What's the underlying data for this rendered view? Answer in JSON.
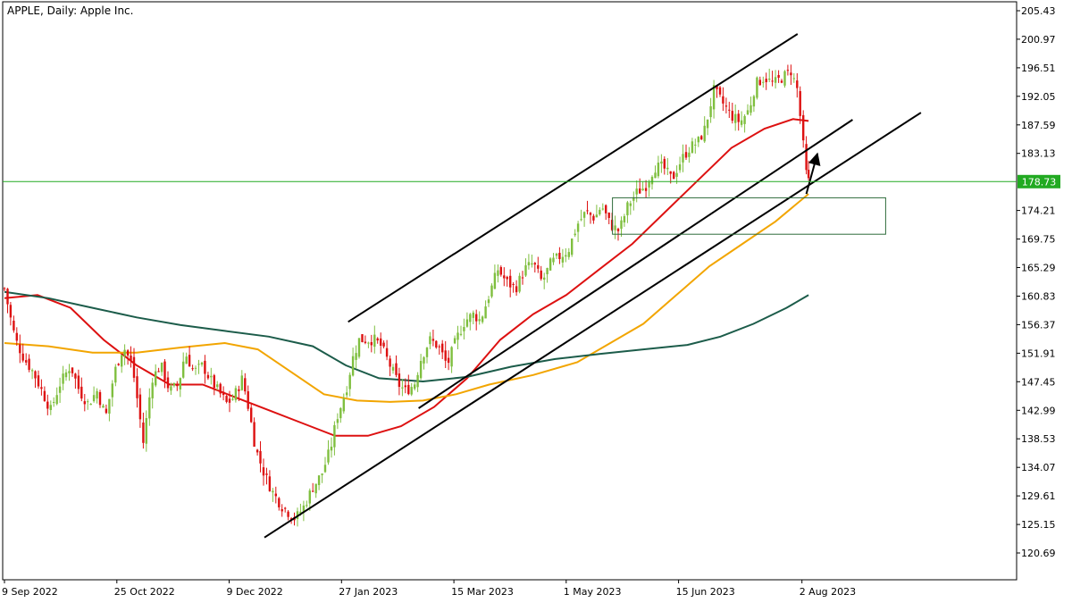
{
  "header": {
    "title": "APPLE, Daily:  Apple Inc."
  },
  "price_label": {
    "value": "178.73"
  },
  "colors": {
    "bull": "#7fbf3f",
    "bear": "#dd1111",
    "ma_fast": "#dd1111",
    "ma_mid": "#f2a500",
    "ma_slow": "#1c5c4a",
    "price_line": "#22aa22",
    "zone_border": "#2e6b3a",
    "trend_line": "#000000",
    "axis": "#000000"
  },
  "chart_data": {
    "type": "candlestick",
    "title": "APPLE, Daily:  Apple Inc.",
    "xlabel": "",
    "ylabel": "",
    "ylim": [
      118.45,
      207.65
    ],
    "grid": false,
    "x_ticks": [
      "9 Sep 2022",
      "25 Oct 2022",
      "9 Dec 2022",
      "27 Jan 2023",
      "15 Mar 2023",
      "1 May 2023",
      "15 Jun 2023",
      "2 Aug 2023"
    ],
    "y_ticks": [
      205.43,
      200.97,
      196.51,
      192.05,
      187.59,
      183.13,
      178.73,
      174.21,
      169.75,
      165.29,
      160.83,
      156.37,
      151.91,
      147.45,
      142.99,
      138.53,
      134.07,
      129.61,
      125.15,
      120.69
    ],
    "current_price": 178.73,
    "price_path": [
      [
        0,
        162
      ],
      [
        3,
        157
      ],
      [
        5,
        154
      ],
      [
        9,
        151
      ],
      [
        13,
        149
      ],
      [
        17,
        146
      ],
      [
        21,
        143
      ],
      [
        25,
        147
      ],
      [
        30,
        150
      ],
      [
        34,
        146
      ],
      [
        38,
        144
      ],
      [
        42,
        146
      ],
      [
        46,
        142
      ],
      [
        50,
        149
      ],
      [
        54,
        153
      ],
      [
        58,
        150
      ],
      [
        61,
        143
      ],
      [
        63,
        138
      ],
      [
        67,
        148
      ],
      [
        71,
        150
      ],
      [
        75,
        146
      ],
      [
        79,
        147
      ],
      [
        82,
        152
      ],
      [
        86,
        149
      ],
      [
        90,
        150
      ],
      [
        93,
        148
      ],
      [
        97,
        146
      ],
      [
        101,
        144
      ],
      [
        104,
        145
      ],
      [
        108,
        148
      ],
      [
        111,
        143
      ],
      [
        114,
        137
      ],
      [
        118,
        133
      ],
      [
        122,
        130
      ],
      [
        126,
        128
      ],
      [
        129,
        127
      ],
      [
        132,
        126
      ],
      [
        136,
        128
      ],
      [
        140,
        131
      ],
      [
        144,
        133
      ],
      [
        148,
        137
      ],
      [
        151,
        142
      ],
      [
        155,
        146
      ],
      [
        158,
        151
      ],
      [
        161,
        154
      ],
      [
        164,
        154
      ],
      [
        168,
        154
      ],
      [
        171,
        153
      ],
      [
        175,
        150
      ],
      [
        179,
        147
      ],
      [
        182,
        146
      ],
      [
        186,
        147
      ],
      [
        189,
        151
      ],
      [
        193,
        154
      ],
      [
        197,
        153
      ],
      [
        201,
        150
      ],
      [
        205,
        154
      ],
      [
        209,
        157
      ],
      [
        213,
        158
      ],
      [
        216,
        157
      ],
      [
        220,
        161
      ],
      [
        224,
        165
      ],
      [
        228,
        163
      ],
      [
        232,
        162
      ],
      [
        236,
        165
      ],
      [
        240,
        166
      ],
      [
        244,
        163
      ],
      [
        248,
        166
      ],
      [
        252,
        167
      ],
      [
        256,
        168
      ],
      [
        260,
        172
      ],
      [
        264,
        174
      ],
      [
        268,
        173
      ],
      [
        271,
        175
      ],
      [
        275,
        172
      ],
      [
        279,
        171
      ],
      [
        283,
        175
      ],
      [
        287,
        177
      ],
      [
        291,
        178
      ],
      [
        295,
        181
      ],
      [
        299,
        181
      ],
      [
        303,
        179
      ],
      [
        307,
        182
      ],
      [
        311,
        184
      ],
      [
        315,
        185
      ],
      [
        318,
        187
      ],
      [
        322,
        193
      ],
      [
        326,
        191
      ],
      [
        330,
        189
      ],
      [
        334,
        188
      ],
      [
        338,
        190
      ],
      [
        341,
        194
      ],
      [
        345,
        195
      ],
      [
        349,
        194
      ],
      [
        353,
        195
      ],
      [
        357,
        196
      ],
      [
        360,
        193
      ],
      [
        363,
        183
      ],
      [
        364,
        180
      ],
      [
        365,
        178.73
      ]
    ],
    "series": [
      {
        "name": "",
        "type": "moving-average",
        "color": "#dd1111",
        "values": [
          [
            0,
            160.5
          ],
          [
            15,
            161
          ],
          [
            30,
            159
          ],
          [
            45,
            154
          ],
          [
            60,
            150
          ],
          [
            75,
            147
          ],
          [
            90,
            147
          ],
          [
            105,
            145
          ],
          [
            120,
            143
          ],
          [
            135,
            141
          ],
          [
            150,
            139
          ],
          [
            165,
            139
          ],
          [
            180,
            140.5
          ],
          [
            195,
            143.5
          ],
          [
            210,
            148
          ],
          [
            225,
            154
          ],
          [
            240,
            158
          ],
          [
            255,
            161
          ],
          [
            270,
            165
          ],
          [
            285,
            169
          ],
          [
            300,
            174
          ],
          [
            315,
            179
          ],
          [
            330,
            184
          ],
          [
            345,
            187
          ],
          [
            358,
            188.5
          ],
          [
            365,
            188.2
          ]
        ]
      },
      {
        "name": "",
        "type": "moving-average",
        "color": "#f2a500",
        "values": [
          [
            0,
            153.5
          ],
          [
            20,
            153
          ],
          [
            40,
            152
          ],
          [
            60,
            152
          ],
          [
            80,
            152.8
          ],
          [
            100,
            153.5
          ],
          [
            115,
            152.5
          ],
          [
            130,
            149
          ],
          [
            145,
            145.5
          ],
          [
            160,
            144.5
          ],
          [
            175,
            144.3
          ],
          [
            190,
            144.5
          ],
          [
            205,
            145.5
          ],
          [
            220,
            147
          ],
          [
            240,
            148.5
          ],
          [
            260,
            150.5
          ],
          [
            275,
            153.5
          ],
          [
            290,
            156.5
          ],
          [
            305,
            161
          ],
          [
            320,
            165.5
          ],
          [
            335,
            169
          ],
          [
            350,
            172.5
          ],
          [
            365,
            176.8
          ]
        ]
      },
      {
        "name": "",
        "type": "moving-average",
        "color": "#1c5c4a",
        "values": [
          [
            0,
            161.5
          ],
          [
            20,
            160.5
          ],
          [
            40,
            159
          ],
          [
            60,
            157.5
          ],
          [
            80,
            156.3
          ],
          [
            100,
            155.4
          ],
          [
            120,
            154.5
          ],
          [
            140,
            153
          ],
          [
            155,
            150
          ],
          [
            170,
            148
          ],
          [
            190,
            147.5
          ],
          [
            210,
            148.2
          ],
          [
            230,
            149.8
          ],
          [
            250,
            151
          ],
          [
            270,
            151.8
          ],
          [
            290,
            152.5
          ],
          [
            310,
            153.2
          ],
          [
            325,
            154.5
          ],
          [
            340,
            156.5
          ],
          [
            355,
            159
          ],
          [
            365,
            161
          ]
        ]
      }
    ],
    "trend_lines": [
      {
        "from": [
          156,
          156.8
        ],
        "to": [
          360,
          201.8
        ]
      },
      {
        "from": [
          188,
          143.3
        ],
        "to": [
          385,
          188.4
        ]
      },
      {
        "from": [
          118,
          123.1
        ],
        "to": [
          416,
          189.5
        ]
      },
      {
        "from": [
          364,
          176.8
        ],
        "to": [
          369,
          183.1
        ]
      }
    ],
    "zone": {
      "x_range": [
        276,
        400
      ],
      "y_range": [
        170.5,
        176.2
      ]
    }
  }
}
